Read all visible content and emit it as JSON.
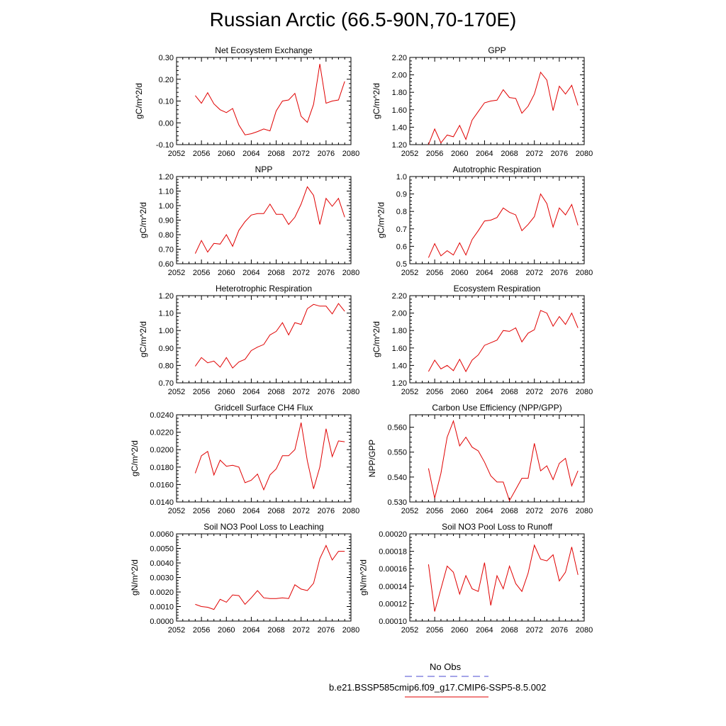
{
  "title": "Russian Arctic (66.5-90N,70-170E)",
  "legend": {
    "obs_label": "No Obs",
    "obs_color": "#4a4ad0",
    "model_label": "b.e21.BSSP585cmip6.f09_g17.CMIP6-SSP5-8.5.002",
    "model_color": "#e00000"
  },
  "chart_data": [
    {
      "type": "line",
      "title": "Net Ecosystem Exchange",
      "ylabel": "gC/m^2/d",
      "xlim": [
        2052,
        2080
      ],
      "ylim": [
        -0.1,
        0.3
      ],
      "xticks": [
        "2052",
        "2056",
        "2060",
        "2064",
        "2068",
        "2072",
        "2076",
        "2080"
      ],
      "yticks": [
        "-0.10",
        "0.00",
        "0.10",
        "0.20",
        "0.30"
      ],
      "x": [
        2055,
        2056,
        2057,
        2058,
        2059,
        2060,
        2061,
        2062,
        2063,
        2064,
        2065,
        2066,
        2067,
        2068,
        2069,
        2070,
        2071,
        2072,
        2073,
        2074,
        2075,
        2076,
        2077,
        2078,
        2079
      ],
      "series": [
        {
          "values": [
            0.125,
            0.09,
            0.138,
            0.087,
            0.06,
            0.047,
            0.066,
            -0.01,
            -0.055,
            -0.05,
            -0.04,
            -0.028,
            -0.037,
            0.055,
            0.1,
            0.105,
            0.135,
            0.03,
            0.002,
            0.085,
            0.27,
            0.09,
            0.1,
            0.105,
            0.19
          ]
        }
      ]
    },
    {
      "type": "line",
      "title": "GPP",
      "ylabel": "gC/m^2/d",
      "xlim": [
        2052,
        2080
      ],
      "ylim": [
        1.2,
        2.2
      ],
      "xticks": [
        "2052",
        "2056",
        "2060",
        "2064",
        "2068",
        "2072",
        "2076",
        "2080"
      ],
      "yticks": [
        "1.20",
        "1.40",
        "1.60",
        "1.80",
        "2.00",
        "2.20"
      ],
      "x": [
        2055,
        2056,
        2057,
        2058,
        2059,
        2060,
        2061,
        2062,
        2063,
        2064,
        2065,
        2066,
        2067,
        2068,
        2069,
        2070,
        2071,
        2072,
        2073,
        2074,
        2075,
        2076,
        2077,
        2078,
        2079
      ],
      "series": [
        {
          "values": [
            1.2,
            1.38,
            1.22,
            1.31,
            1.29,
            1.42,
            1.26,
            1.48,
            1.58,
            1.68,
            1.7,
            1.71,
            1.83,
            1.74,
            1.73,
            1.56,
            1.64,
            1.78,
            2.03,
            1.94,
            1.59,
            1.87,
            1.78,
            1.88,
            1.65
          ]
        }
      ]
    },
    {
      "type": "line",
      "title": "NPP",
      "ylabel": "gC/m^2/d",
      "xlim": [
        2052,
        2080
      ],
      "ylim": [
        0.6,
        1.2
      ],
      "xticks": [
        "2052",
        "2056",
        "2060",
        "2064",
        "2068",
        "2072",
        "2076",
        "2080"
      ],
      "yticks": [
        "0.60",
        "0.70",
        "0.80",
        "0.90",
        "1.00",
        "1.10",
        "1.20"
      ],
      "x": [
        2055,
        2056,
        2057,
        2058,
        2059,
        2060,
        2061,
        2062,
        2063,
        2064,
        2065,
        2066,
        2067,
        2068,
        2069,
        2070,
        2071,
        2072,
        2073,
        2074,
        2075,
        2076,
        2077,
        2078,
        2079
      ],
      "series": [
        {
          "values": [
            0.67,
            0.76,
            0.68,
            0.74,
            0.735,
            0.8,
            0.72,
            0.83,
            0.89,
            0.935,
            0.945,
            0.945,
            1.01,
            0.94,
            0.94,
            0.87,
            0.92,
            1.01,
            1.13,
            1.07,
            0.87,
            1.05,
            0.995,
            1.05,
            0.92
          ]
        }
      ]
    },
    {
      "type": "line",
      "title": "Autotrophic Respiration",
      "ylabel": "gC/m^2/d",
      "xlim": [
        2052,
        2080
      ],
      "ylim": [
        0.5,
        1.0
      ],
      "xticks": [
        "2052",
        "2056",
        "2060",
        "2064",
        "2068",
        "2072",
        "2076",
        "2080"
      ],
      "yticks": [
        "0.5",
        "0.6",
        "0.7",
        "0.8",
        "0.9",
        "1.0"
      ],
      "x": [
        2055,
        2056,
        2057,
        2058,
        2059,
        2060,
        2061,
        2062,
        2063,
        2064,
        2065,
        2066,
        2067,
        2068,
        2069,
        2070,
        2071,
        2072,
        2073,
        2074,
        2075,
        2076,
        2077,
        2078,
        2079
      ],
      "series": [
        {
          "values": [
            0.535,
            0.615,
            0.545,
            0.575,
            0.55,
            0.62,
            0.55,
            0.64,
            0.69,
            0.745,
            0.75,
            0.765,
            0.82,
            0.795,
            0.78,
            0.69,
            0.725,
            0.77,
            0.9,
            0.845,
            0.71,
            0.82,
            0.78,
            0.84,
            0.72
          ]
        }
      ]
    },
    {
      "type": "line",
      "title": "Heterotrophic Respiration",
      "ylabel": "gC/m^2/d",
      "xlim": [
        2052,
        2080
      ],
      "ylim": [
        0.7,
        1.2
      ],
      "xticks": [
        "2052",
        "2056",
        "2060",
        "2064",
        "2068",
        "2072",
        "2076",
        "2080"
      ],
      "yticks": [
        "0.70",
        "0.80",
        "0.90",
        "1.00",
        "1.10",
        "1.20"
      ],
      "x": [
        2055,
        2056,
        2057,
        2058,
        2059,
        2060,
        2061,
        2062,
        2063,
        2064,
        2065,
        2066,
        2067,
        2068,
        2069,
        2070,
        2071,
        2072,
        2073,
        2074,
        2075,
        2076,
        2077,
        2078,
        2079
      ],
      "series": [
        {
          "values": [
            0.795,
            0.845,
            0.815,
            0.825,
            0.79,
            0.845,
            0.785,
            0.82,
            0.835,
            0.885,
            0.905,
            0.92,
            0.975,
            0.995,
            1.045,
            0.975,
            1.045,
            1.035,
            1.125,
            1.15,
            1.14,
            1.14,
            1.095,
            1.155,
            1.11
          ]
        }
      ]
    },
    {
      "type": "line",
      "title": "Ecosystem Respiration",
      "ylabel": "gC/m^2/d",
      "xlim": [
        2052,
        2080
      ],
      "ylim": [
        1.2,
        2.2
      ],
      "xticks": [
        "2052",
        "2056",
        "2060",
        "2064",
        "2068",
        "2072",
        "2076",
        "2080"
      ],
      "yticks": [
        "1.20",
        "1.40",
        "1.60",
        "1.80",
        "2.00",
        "2.20"
      ],
      "x": [
        2055,
        2056,
        2057,
        2058,
        2059,
        2060,
        2061,
        2062,
        2063,
        2064,
        2065,
        2066,
        2067,
        2068,
        2069,
        2070,
        2071,
        2072,
        2073,
        2074,
        2075,
        2076,
        2077,
        2078,
        2079
      ],
      "series": [
        {
          "values": [
            1.33,
            1.46,
            1.36,
            1.4,
            1.34,
            1.47,
            1.33,
            1.46,
            1.52,
            1.63,
            1.66,
            1.69,
            1.8,
            1.79,
            1.83,
            1.67,
            1.77,
            1.81,
            2.03,
            2.0,
            1.85,
            1.96,
            1.87,
            2.0,
            1.83
          ]
        }
      ]
    },
    {
      "type": "line",
      "title": "Gridcell Surface CH4 Flux",
      "ylabel": "gC/m^2/d",
      "xlim": [
        2052,
        2080
      ],
      "ylim": [
        0.014,
        0.024
      ],
      "xticks": [
        "2052",
        "2056",
        "2060",
        "2064",
        "2068",
        "2072",
        "2076",
        "2080"
      ],
      "yticks": [
        "0.0140",
        "0.0160",
        "0.0180",
        "0.0200",
        "0.0220",
        "0.0240"
      ],
      "x": [
        2055,
        2056,
        2057,
        2058,
        2059,
        2060,
        2061,
        2062,
        2063,
        2064,
        2065,
        2066,
        2067,
        2068,
        2069,
        2070,
        2071,
        2072,
        2073,
        2074,
        2075,
        2076,
        2077,
        2078,
        2079
      ],
      "series": [
        {
          "values": [
            0.0173,
            0.0193,
            0.0198,
            0.0171,
            0.0188,
            0.0181,
            0.0182,
            0.018,
            0.0162,
            0.0165,
            0.0172,
            0.0154,
            0.0171,
            0.0178,
            0.0193,
            0.0193,
            0.02,
            0.0231,
            0.0187,
            0.0155,
            0.018,
            0.0224,
            0.0192,
            0.021,
            0.0209
          ]
        }
      ]
    },
    {
      "type": "line",
      "title": "Carbon Use Efficiency (NPP/GPP)",
      "ylabel": "NPP/GPP",
      "xlim": [
        2052,
        2080
      ],
      "ylim": [
        0.53,
        0.565
      ],
      "xticks": [
        "2052",
        "2056",
        "2060",
        "2064",
        "2068",
        "2072",
        "2076",
        "2080"
      ],
      "yticks": [
        "0.530",
        "0.540",
        "0.550",
        "0.560"
      ],
      "x": [
        2055,
        2056,
        2057,
        2058,
        2059,
        2060,
        2061,
        2062,
        2063,
        2064,
        2065,
        2066,
        2067,
        2068,
        2069,
        2070,
        2071,
        2072,
        2073,
        2074,
        2075,
        2076,
        2077,
        2078,
        2079
      ],
      "series": [
        {
          "values": [
            0.5435,
            0.5315,
            0.5415,
            0.556,
            0.5625,
            0.5525,
            0.556,
            0.552,
            0.5505,
            0.546,
            0.5405,
            0.538,
            0.538,
            0.5305,
            0.535,
            0.5395,
            0.5395,
            0.5535,
            0.5425,
            0.5445,
            0.539,
            0.5455,
            0.5475,
            0.5365,
            0.5425
          ]
        }
      ]
    },
    {
      "type": "line",
      "title": "Soil NO3 Pool Loss to Leaching",
      "ylabel": "gN/m^2/d",
      "xlim": [
        2052,
        2080
      ],
      "ylim": [
        0.0,
        0.006
      ],
      "xticks": [
        "2052",
        "2056",
        "2060",
        "2064",
        "2068",
        "2072",
        "2076",
        "2080"
      ],
      "yticks": [
        "0.0000",
        "0.0010",
        "0.0020",
        "0.0030",
        "0.0040",
        "0.0050",
        "0.0060"
      ],
      "x": [
        2055,
        2056,
        2057,
        2058,
        2059,
        2060,
        2061,
        2062,
        2063,
        2064,
        2065,
        2066,
        2067,
        2068,
        2069,
        2070,
        2071,
        2072,
        2073,
        2074,
        2075,
        2076,
        2077,
        2078,
        2079
      ],
      "series": [
        {
          "values": [
            0.00115,
            0.001,
            0.00095,
            0.0008,
            0.0015,
            0.0013,
            0.0018,
            0.00175,
            0.00115,
            0.0016,
            0.0021,
            0.0016,
            0.00155,
            0.00155,
            0.0016,
            0.00155,
            0.0025,
            0.0022,
            0.0021,
            0.0026,
            0.0043,
            0.0052,
            0.0042,
            0.0048,
            0.0048
          ]
        }
      ]
    },
    {
      "type": "line",
      "title": "Soil NO3 Pool Loss to Runoff",
      "ylabel": "gN/m^2/d",
      "xlim": [
        2052,
        2080
      ],
      "ylim": [
        0.0001,
        0.0002
      ],
      "xticks": [
        "2052",
        "2056",
        "2060",
        "2064",
        "2068",
        "2072",
        "2076",
        "2080"
      ],
      "yticks": [
        "0.00010",
        "0.00012",
        "0.00014",
        "0.00016",
        "0.00018",
        "0.00020"
      ],
      "x": [
        2055,
        2056,
        2057,
        2058,
        2059,
        2060,
        2061,
        2062,
        2063,
        2064,
        2065,
        2066,
        2067,
        2068,
        2069,
        2070,
        2071,
        2072,
        2073,
        2074,
        2075,
        2076,
        2077,
        2078,
        2079
      ],
      "series": [
        {
          "values": [
            0.000165,
            0.000111,
            0.000137,
            0.000163,
            0.000156,
            0.000131,
            0.000152,
            0.000137,
            0.000134,
            0.000167,
            0.000118,
            0.000152,
            0.000137,
            0.000163,
            0.000143,
            0.000134,
            0.000155,
            0.000187,
            0.000171,
            0.000169,
            0.000176,
            0.000146,
            0.000156,
            0.000185,
            0.000153
          ]
        }
      ]
    }
  ]
}
